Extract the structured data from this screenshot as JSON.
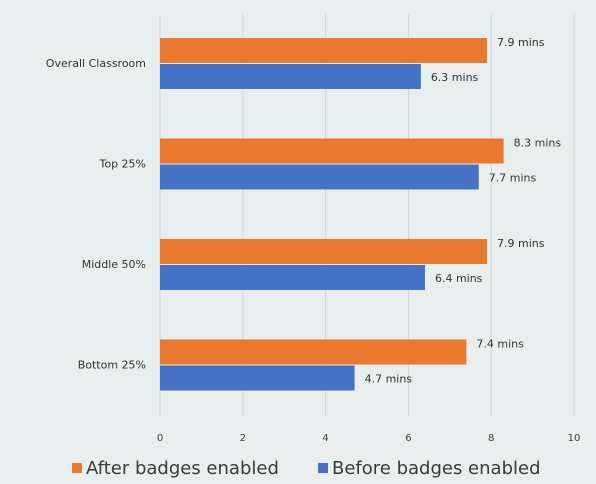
{
  "chart_data": {
    "type": "bar",
    "orientation": "horizontal",
    "categories": [
      "Overall Classroom",
      "Top 25%",
      "Middle 50%",
      "Bottom  25%"
    ],
    "series": [
      {
        "name": "After badges enabled",
        "color": "#e8792f",
        "values": [
          7.9,
          8.3,
          7.9,
          7.4
        ],
        "labels": [
          "7.9 mins",
          "8.3 mins",
          "7.9 mins",
          "7.4 mins"
        ]
      },
      {
        "name": "Before badges enabled",
        "color": "#4472c4",
        "values": [
          6.3,
          7.7,
          6.4,
          4.7
        ],
        "labels": [
          "6.3 mins",
          "7.7 mins",
          "6.4 mins",
          "4.7 mins"
        ]
      }
    ],
    "xlim": [
      0,
      10
    ],
    "xticks": [
      0,
      2,
      4,
      6,
      8,
      10
    ],
    "grid": true,
    "legend_position": "bottom"
  },
  "background_color": "#e9efee"
}
